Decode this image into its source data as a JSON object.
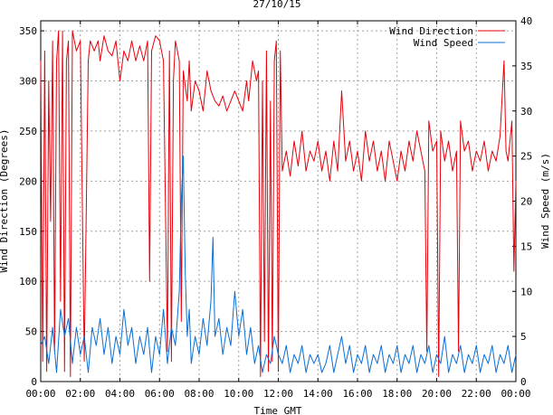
{
  "chart_data": {
    "type": "line",
    "title": "27/10/15",
    "xlabel": "Time GMT",
    "ylabel_left": "Wind Direction (Degrees)",
    "ylabel_right": "Wind Speed (m/s)",
    "x_ticks": [
      "00:00",
      "02:00",
      "04:00",
      "06:00",
      "08:00",
      "10:00",
      "12:00",
      "14:00",
      "16:00",
      "18:00",
      "20:00",
      "22:00",
      "00:00"
    ],
    "x_range_hours": [
      0,
      24
    ],
    "y_left_ticks": [
      0,
      50,
      100,
      150,
      200,
      250,
      300,
      350
    ],
    "y_left_range": [
      0,
      360
    ],
    "y_right_ticks": [
      0,
      5,
      10,
      15,
      20,
      25,
      30,
      35,
      40
    ],
    "y_right_range": [
      0,
      40
    ],
    "grid": true,
    "legend_position": "top-right",
    "series": [
      {
        "name": "Wind Direction",
        "axis": "left",
        "color": "#e8000b",
        "points": [
          [
            0.0,
            320
          ],
          [
            0.1,
            20
          ],
          [
            0.2,
            330
          ],
          [
            0.3,
            10
          ],
          [
            0.4,
            300
          ],
          [
            0.5,
            160
          ],
          [
            0.6,
            340
          ],
          [
            0.7,
            30
          ],
          [
            0.8,
            320
          ],
          [
            0.9,
            350
          ],
          [
            1.0,
            80
          ],
          [
            1.1,
            350
          ],
          [
            1.2,
            10
          ],
          [
            1.3,
            320
          ],
          [
            1.4,
            340
          ],
          [
            1.5,
            5
          ],
          [
            1.6,
            350
          ],
          [
            1.8,
            330
          ],
          [
            2.0,
            340
          ],
          [
            2.2,
            20
          ],
          [
            2.4,
            320
          ],
          [
            2.5,
            340
          ],
          [
            2.7,
            330
          ],
          [
            2.9,
            340
          ],
          [
            3.0,
            320
          ],
          [
            3.2,
            345
          ],
          [
            3.4,
            330
          ],
          [
            3.6,
            325
          ],
          [
            3.8,
            340
          ],
          [
            4.0,
            300
          ],
          [
            4.2,
            330
          ],
          [
            4.4,
            320
          ],
          [
            4.6,
            340
          ],
          [
            4.8,
            320
          ],
          [
            5.0,
            335
          ],
          [
            5.2,
            320
          ],
          [
            5.4,
            340
          ],
          [
            5.5,
            100
          ],
          [
            5.6,
            330
          ],
          [
            5.8,
            345
          ],
          [
            6.0,
            340
          ],
          [
            6.2,
            320
          ],
          [
            6.4,
            30
          ],
          [
            6.5,
            330
          ],
          [
            6.6,
            20
          ],
          [
            6.7,
            300
          ],
          [
            6.8,
            340
          ],
          [
            7.0,
            320
          ],
          [
            7.1,
            60
          ],
          [
            7.2,
            310
          ],
          [
            7.4,
            280
          ],
          [
            7.5,
            320
          ],
          [
            7.6,
            270
          ],
          [
            7.8,
            300
          ],
          [
            8.0,
            290
          ],
          [
            8.2,
            270
          ],
          [
            8.4,
            310
          ],
          [
            8.6,
            290
          ],
          [
            8.8,
            280
          ],
          [
            9.0,
            275
          ],
          [
            9.2,
            285
          ],
          [
            9.4,
            270
          ],
          [
            9.6,
            280
          ],
          [
            9.8,
            290
          ],
          [
            10.0,
            280
          ],
          [
            10.2,
            270
          ],
          [
            10.4,
            300
          ],
          [
            10.5,
            280
          ],
          [
            10.7,
            320
          ],
          [
            10.9,
            300
          ],
          [
            11.0,
            310
          ],
          [
            11.1,
            5
          ],
          [
            11.2,
            300
          ],
          [
            11.3,
            40
          ],
          [
            11.4,
            330
          ],
          [
            11.5,
            10
          ],
          [
            11.6,
            280
          ],
          [
            11.7,
            20
          ],
          [
            11.8,
            320
          ],
          [
            11.9,
            340
          ],
          [
            12.0,
            10
          ],
          [
            12.1,
            330
          ],
          [
            12.2,
            210
          ],
          [
            12.4,
            230
          ],
          [
            12.6,
            205
          ],
          [
            12.8,
            240
          ],
          [
            13.0,
            215
          ],
          [
            13.2,
            250
          ],
          [
            13.4,
            210
          ],
          [
            13.6,
            230
          ],
          [
            13.8,
            220
          ],
          [
            14.0,
            240
          ],
          [
            14.2,
            210
          ],
          [
            14.4,
            230
          ],
          [
            14.6,
            200
          ],
          [
            14.8,
            240
          ],
          [
            15.0,
            210
          ],
          [
            15.2,
            290
          ],
          [
            15.4,
            220
          ],
          [
            15.6,
            240
          ],
          [
            15.8,
            210
          ],
          [
            16.0,
            230
          ],
          [
            16.2,
            200
          ],
          [
            16.4,
            250
          ],
          [
            16.6,
            220
          ],
          [
            16.8,
            240
          ],
          [
            17.0,
            210
          ],
          [
            17.2,
            230
          ],
          [
            17.4,
            200
          ],
          [
            17.6,
            240
          ],
          [
            17.8,
            220
          ],
          [
            18.0,
            200
          ],
          [
            18.2,
            230
          ],
          [
            18.4,
            210
          ],
          [
            18.6,
            240
          ],
          [
            18.8,
            220
          ],
          [
            19.0,
            250
          ],
          [
            19.2,
            230
          ],
          [
            19.4,
            210
          ],
          [
            19.5,
            30
          ],
          [
            19.6,
            260
          ],
          [
            19.8,
            230
          ],
          [
            20.0,
            240
          ],
          [
            20.1,
            5
          ],
          [
            20.2,
            250
          ],
          [
            20.4,
            220
          ],
          [
            20.6,
            240
          ],
          [
            20.8,
            210
          ],
          [
            21.0,
            230
          ],
          [
            21.1,
            30
          ],
          [
            21.2,
            260
          ],
          [
            21.4,
            230
          ],
          [
            21.6,
            240
          ],
          [
            21.8,
            210
          ],
          [
            22.0,
            230
          ],
          [
            22.2,
            220
          ],
          [
            22.4,
            240
          ],
          [
            22.6,
            210
          ],
          [
            22.8,
            230
          ],
          [
            23.0,
            220
          ],
          [
            23.2,
            245
          ],
          [
            23.4,
            320
          ],
          [
            23.5,
            230
          ],
          [
            23.6,
            220
          ],
          [
            23.8,
            260
          ],
          [
            23.9,
            110
          ],
          [
            24.0,
            200
          ]
        ]
      },
      {
        "name": "Wind Speed",
        "axis": "right",
        "color": "#0a6fd6",
        "points": [
          [
            0.0,
            4
          ],
          [
            0.2,
            5
          ],
          [
            0.4,
            2
          ],
          [
            0.6,
            6
          ],
          [
            0.8,
            1
          ],
          [
            1.0,
            8
          ],
          [
            1.2,
            5
          ],
          [
            1.4,
            7
          ],
          [
            1.6,
            2
          ],
          [
            1.8,
            6
          ],
          [
            2.0,
            3
          ],
          [
            2.2,
            5
          ],
          [
            2.4,
            1
          ],
          [
            2.6,
            6
          ],
          [
            2.8,
            4
          ],
          [
            3.0,
            7
          ],
          [
            3.2,
            3
          ],
          [
            3.4,
            6
          ],
          [
            3.6,
            2
          ],
          [
            3.8,
            5
          ],
          [
            4.0,
            3
          ],
          [
            4.2,
            8
          ],
          [
            4.4,
            4
          ],
          [
            4.6,
            6
          ],
          [
            4.8,
            2
          ],
          [
            5.0,
            5
          ],
          [
            5.2,
            3
          ],
          [
            5.4,
            6
          ],
          [
            5.6,
            1
          ],
          [
            5.8,
            5
          ],
          [
            6.0,
            3
          ],
          [
            6.2,
            8
          ],
          [
            6.4,
            2
          ],
          [
            6.6,
            6
          ],
          [
            6.8,
            4
          ],
          [
            7.0,
            10
          ],
          [
            7.1,
            20
          ],
          [
            7.2,
            25
          ],
          [
            7.3,
            12
          ],
          [
            7.4,
            5
          ],
          [
            7.5,
            8
          ],
          [
            7.6,
            2
          ],
          [
            7.8,
            5
          ],
          [
            8.0,
            3
          ],
          [
            8.2,
            7
          ],
          [
            8.4,
            4
          ],
          [
            8.6,
            9
          ],
          [
            8.7,
            16
          ],
          [
            8.8,
            5
          ],
          [
            9.0,
            7
          ],
          [
            9.2,
            3
          ],
          [
            9.4,
            6
          ],
          [
            9.6,
            4
          ],
          [
            9.8,
            10
          ],
          [
            10.0,
            5
          ],
          [
            10.2,
            8
          ],
          [
            10.4,
            3
          ],
          [
            10.6,
            6
          ],
          [
            10.8,
            2
          ],
          [
            11.0,
            4
          ],
          [
            11.2,
            1
          ],
          [
            11.4,
            3
          ],
          [
            11.6,
            2
          ],
          [
            11.8,
            5
          ],
          [
            12.0,
            3
          ],
          [
            12.2,
            2
          ],
          [
            12.4,
            4
          ],
          [
            12.6,
            1
          ],
          [
            12.8,
            3
          ],
          [
            13.0,
            2
          ],
          [
            13.2,
            4
          ],
          [
            13.4,
            1
          ],
          [
            13.6,
            3
          ],
          [
            13.8,
            2
          ],
          [
            14.0,
            3
          ],
          [
            14.2,
            1
          ],
          [
            14.4,
            2
          ],
          [
            14.6,
            4
          ],
          [
            14.8,
            1
          ],
          [
            15.0,
            3
          ],
          [
            15.2,
            5
          ],
          [
            15.4,
            2
          ],
          [
            15.6,
            4
          ],
          [
            15.8,
            1
          ],
          [
            16.0,
            3
          ],
          [
            16.2,
            2
          ],
          [
            16.4,
            4
          ],
          [
            16.6,
            1
          ],
          [
            16.8,
            3
          ],
          [
            17.0,
            2
          ],
          [
            17.2,
            4
          ],
          [
            17.4,
            1
          ],
          [
            17.6,
            3
          ],
          [
            17.8,
            2
          ],
          [
            18.0,
            4
          ],
          [
            18.2,
            1
          ],
          [
            18.4,
            3
          ],
          [
            18.6,
            2
          ],
          [
            18.8,
            4
          ],
          [
            19.0,
            1
          ],
          [
            19.2,
            3
          ],
          [
            19.4,
            2
          ],
          [
            19.6,
            4
          ],
          [
            19.8,
            1
          ],
          [
            20.0,
            3
          ],
          [
            20.2,
            2
          ],
          [
            20.4,
            5
          ],
          [
            20.6,
            1
          ],
          [
            20.8,
            3
          ],
          [
            21.0,
            2
          ],
          [
            21.2,
            4
          ],
          [
            21.4,
            1
          ],
          [
            21.6,
            3
          ],
          [
            21.8,
            2
          ],
          [
            22.0,
            4
          ],
          [
            22.2,
            1
          ],
          [
            22.4,
            3
          ],
          [
            22.6,
            2
          ],
          [
            22.8,
            4
          ],
          [
            23.0,
            1
          ],
          [
            23.2,
            3
          ],
          [
            23.4,
            2
          ],
          [
            23.6,
            4
          ],
          [
            23.8,
            1
          ],
          [
            24.0,
            3
          ]
        ]
      }
    ]
  }
}
